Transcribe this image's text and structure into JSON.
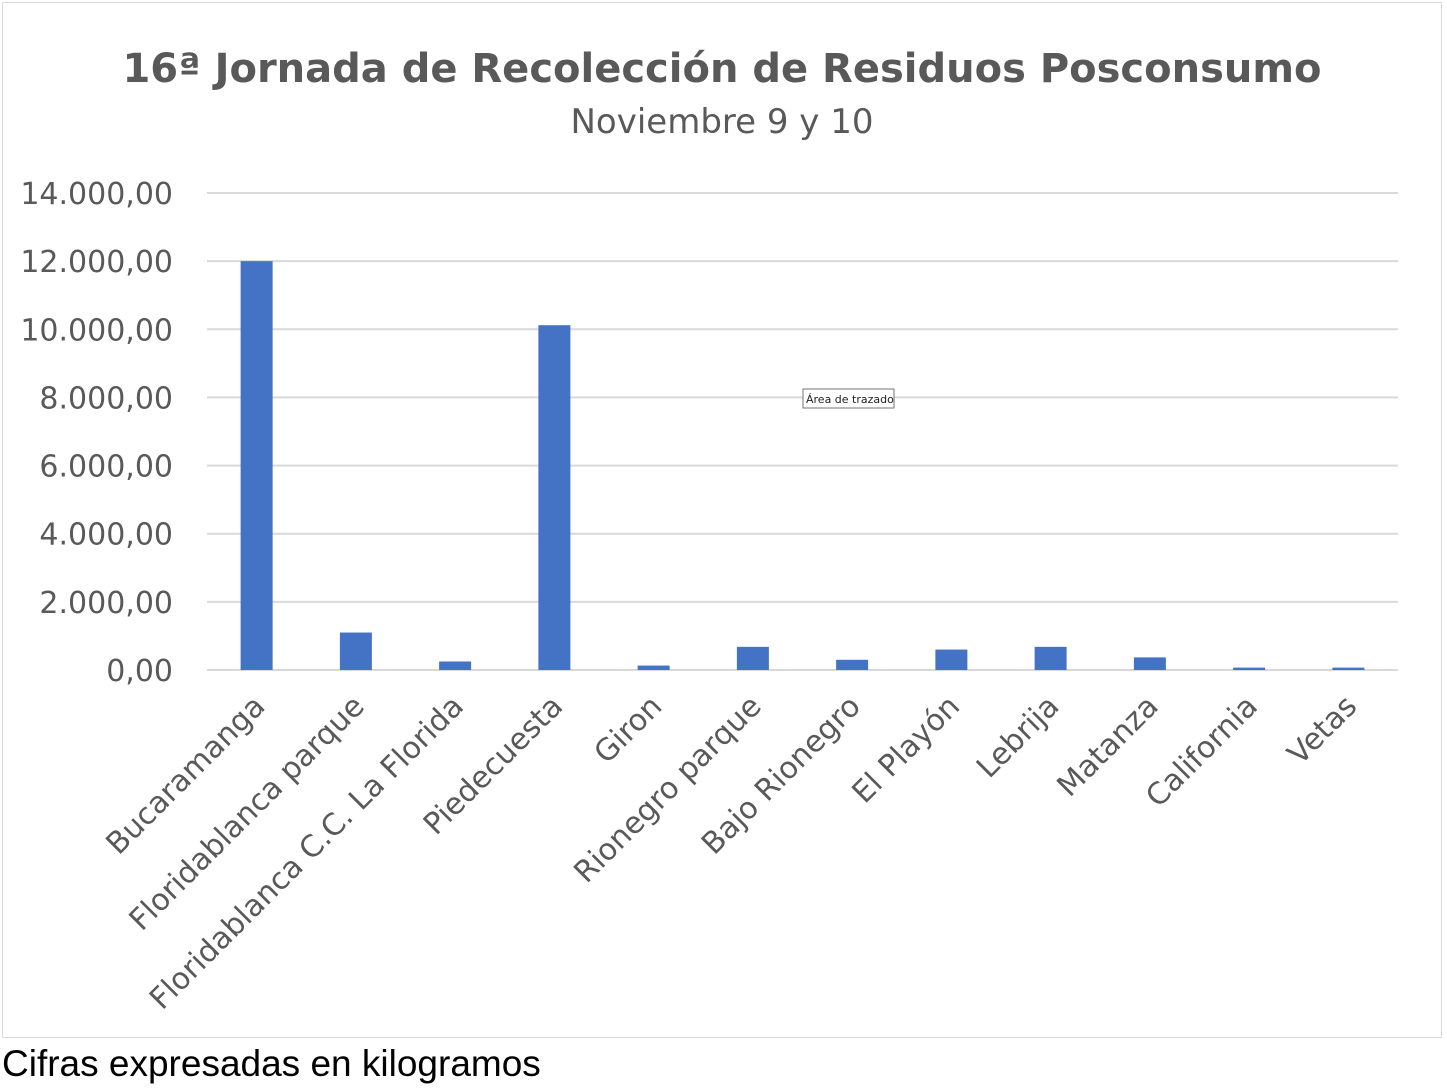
{
  "chart_data": {
    "type": "bar",
    "title": "16ª Jornada de Recolección de Residuos Posconsumo",
    "subtitle": "Noviembre 9 y 10",
    "categories": [
      "Bucaramanga",
      "Floridablanca parque",
      "Floridablanca C.C. La Florida",
      "Piedecuesta",
      "Giron",
      "Rionegro parque",
      "Bajo Rionegro",
      "El Playón",
      "Lebrija",
      "Matanza",
      "California",
      "Vetas"
    ],
    "values": [
      12000,
      1100,
      250,
      10120,
      130,
      680,
      300,
      600,
      680,
      370,
      70,
      70
    ],
    "ylim": [
      0,
      14000
    ],
    "yticks": [
      0,
      2000,
      4000,
      6000,
      8000,
      10000,
      12000,
      14000
    ],
    "ytick_labels": [
      "0,00",
      "2.000,00",
      "4.000,00",
      "6.000,00",
      "8.000,00",
      "10.000,00",
      "12.000,00",
      "14.000,00"
    ],
    "bar_color": "#4472c4",
    "grid": true,
    "legend": "none"
  },
  "tooltip": "Área de trazado",
  "footnote": "Cifras expresadas en kilogramos"
}
